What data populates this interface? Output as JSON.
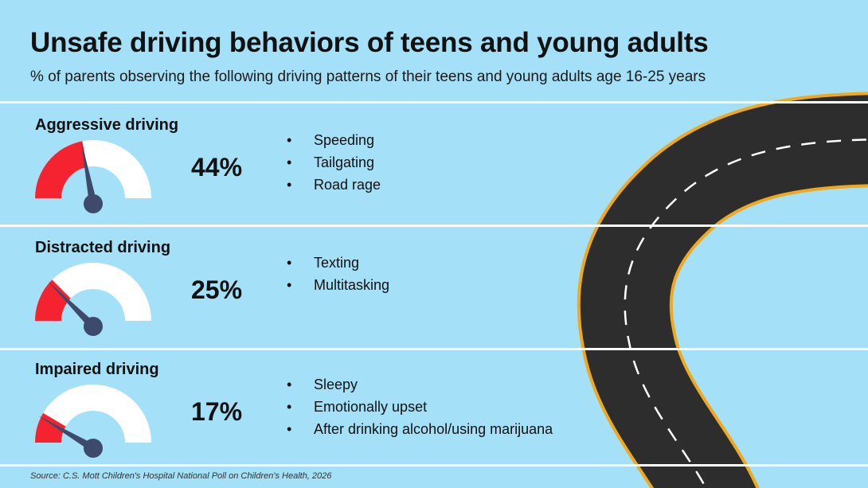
{
  "title": "Unsafe driving behaviors of teens and young adults",
  "subtitle": "% of parents observing the following driving patterns of their teens and young adults age 16-25 years",
  "source": "Source: C.S. Mott Children's Hospital National Poll on Children's Health, 2026",
  "colors": {
    "background": "#a4e0f7",
    "gauge_fill": "#f5222f",
    "gauge_track": "#ffffff",
    "needle": "#3e4a6b",
    "road": "#2d2d2d",
    "road_edge": "#f0a81c",
    "road_center": "#ffffff"
  },
  "chart_data": {
    "type": "gauge",
    "unit": "%",
    "range": [
      0,
      100
    ],
    "categories": [
      "Aggressive driving",
      "Distracted driving",
      "Impaired driving"
    ],
    "values": [
      44,
      25,
      17
    ],
    "value_labels": [
      "44%",
      "25%",
      "17%"
    ],
    "items": [
      {
        "name": "Aggressive driving",
        "value": 44,
        "label": "44%",
        "behaviors": [
          "Speeding",
          "Tailgating",
          "Road rage"
        ]
      },
      {
        "name": "Distracted driving",
        "value": 25,
        "label": "25%",
        "behaviors": [
          "Texting",
          "Multitasking"
        ]
      },
      {
        "name": "Impaired driving",
        "value": 17,
        "label": "17%",
        "behaviors": [
          "Sleepy",
          "Emotionally upset",
          "After drinking alcohol/using marijuana"
        ]
      }
    ]
  }
}
